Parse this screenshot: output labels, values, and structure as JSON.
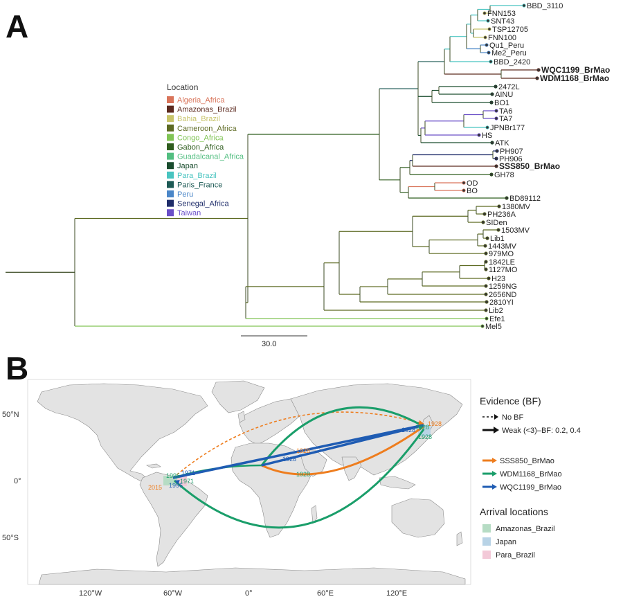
{
  "panel_a": {
    "label": "A",
    "legend_title": "Location",
    "legend": [
      {
        "name": "Algeria_Africa",
        "color": "#d9745a"
      },
      {
        "name": "Amazonas_Brazil",
        "color": "#5c2a1f"
      },
      {
        "name": "Bahia_Brazil",
        "color": "#c8c46a"
      },
      {
        "name": "Cameroon_Africa",
        "color": "#5d6a22"
      },
      {
        "name": "Congo_Africa",
        "color": "#80c454"
      },
      {
        "name": "Gabon_Africa",
        "color": "#2f5d1e"
      },
      {
        "name": "Guadalcanal_Africa",
        "color": "#52be80"
      },
      {
        "name": "Japan",
        "color": "#1a4d2e"
      },
      {
        "name": "Para_Brazil",
        "color": "#48c4c0"
      },
      {
        "name": "Paris_France",
        "color": "#1d5a55"
      },
      {
        "name": "Peru",
        "color": "#4a86c8"
      },
      {
        "name": "Senegal_Africa",
        "color": "#1f2d6a"
      },
      {
        "name": "Taiwan",
        "color": "#6a4fc8"
      }
    ],
    "tips": [
      {
        "name": "BBD_3110",
        "bold": false
      },
      {
        "name": "FNN153",
        "bold": false
      },
      {
        "name": "SNT43",
        "bold": false
      },
      {
        "name": "TSP12705",
        "bold": false
      },
      {
        "name": "FNN100",
        "bold": false
      },
      {
        "name": "Qu1_Peru",
        "bold": false
      },
      {
        "name": "Me2_Peru",
        "bold": false
      },
      {
        "name": "BBD_2420",
        "bold": false
      },
      {
        "name": "WQC1199_BrMao",
        "bold": true
      },
      {
        "name": "WDM1168_BrMao",
        "bold": true
      },
      {
        "name": "2472L",
        "bold": false
      },
      {
        "name": "AINU",
        "bold": false
      },
      {
        "name": "BO1",
        "bold": false
      },
      {
        "name": "TA6",
        "bold": false
      },
      {
        "name": "TA7",
        "bold": false
      },
      {
        "name": "JPNBr177",
        "bold": false
      },
      {
        "name": "HS",
        "bold": false
      },
      {
        "name": "ATK",
        "bold": false
      },
      {
        "name": "PH907",
        "bold": false
      },
      {
        "name": "PH906",
        "bold": false
      },
      {
        "name": "SSS850_BrMao",
        "bold": true
      },
      {
        "name": "GH78",
        "bold": false
      },
      {
        "name": "OD",
        "bold": false
      },
      {
        "name": "BO",
        "bold": false
      },
      {
        "name": "BD89112",
        "bold": false
      },
      {
        "name": "1380MV",
        "bold": false
      },
      {
        "name": "PH236A",
        "bold": false
      },
      {
        "name": "SIDen",
        "bold": false
      },
      {
        "name": "1503MV",
        "bold": false
      },
      {
        "name": "Lib1",
        "bold": false
      },
      {
        "name": "1443MV",
        "bold": false
      },
      {
        "name": "979MO",
        "bold": false
      },
      {
        "name": "1842LE",
        "bold": false
      },
      {
        "name": "1127MO",
        "bold": false
      },
      {
        "name": "H23",
        "bold": false
      },
      {
        "name": "1259NG",
        "bold": false
      },
      {
        "name": "2656ND",
        "bold": false
      },
      {
        "name": "2810YI",
        "bold": false
      },
      {
        "name": "Lib2",
        "bold": false
      },
      {
        "name": "Efe1",
        "bold": false
      },
      {
        "name": "Mel5",
        "bold": false
      }
    ],
    "scale_bar_label": "30.0"
  },
  "panel_b": {
    "label": "B",
    "lat_ticks": [
      "50°N",
      "0°",
      "50°S"
    ],
    "lon_ticks": [
      "120°W",
      "60°W",
      "0°",
      "60°E",
      "120°E"
    ],
    "evidence_title": "Evidence (BF)",
    "evidence_items": [
      "No BF",
      "Weak (<3)–BF: 0.2, 0.4"
    ],
    "routes": [
      {
        "name": "SSS850_BrMao",
        "color": "#ee7d1e"
      },
      {
        "name": "WDM1168_BrMao",
        "color": "#1a9e6a"
      },
      {
        "name": "WQC1199_BrMao",
        "color": "#1f5cb3"
      }
    ],
    "arrival_title": "Arrival locations",
    "arrivals": [
      {
        "name": "Amazonas_Brazil",
        "color": "#b6dcc4"
      },
      {
        "name": "Japan",
        "color": "#b8d3e6"
      },
      {
        "name": "Para_Brazil",
        "color": "#f3c9d8"
      }
    ],
    "year_labels": [
      {
        "text": "1928",
        "route": "SSS850_BrMao"
      },
      {
        "text": "1928",
        "route": "SSS850_BrMao"
      },
      {
        "text": "1928",
        "route": "WDM1168_BrMao"
      },
      {
        "text": "1928",
        "route": "WDM1168_BrMao"
      },
      {
        "text": "1928",
        "route": "WDM1168_BrMao"
      },
      {
        "text": "1928",
        "route": "WQC1199_BrMao"
      },
      {
        "text": "1928",
        "route": "WQC1199_BrMao"
      },
      {
        "text": "1971",
        "route": "WQC1199_BrMao"
      },
      {
        "text": "1971",
        "route": "WDM1168_BrMao"
      },
      {
        "text": "1996",
        "route": "WQC1199_BrMao"
      },
      {
        "text": "1996",
        "route": "WDM1168_BrMao"
      },
      {
        "text": "2015",
        "route": "SSS850_BrMao"
      }
    ]
  }
}
